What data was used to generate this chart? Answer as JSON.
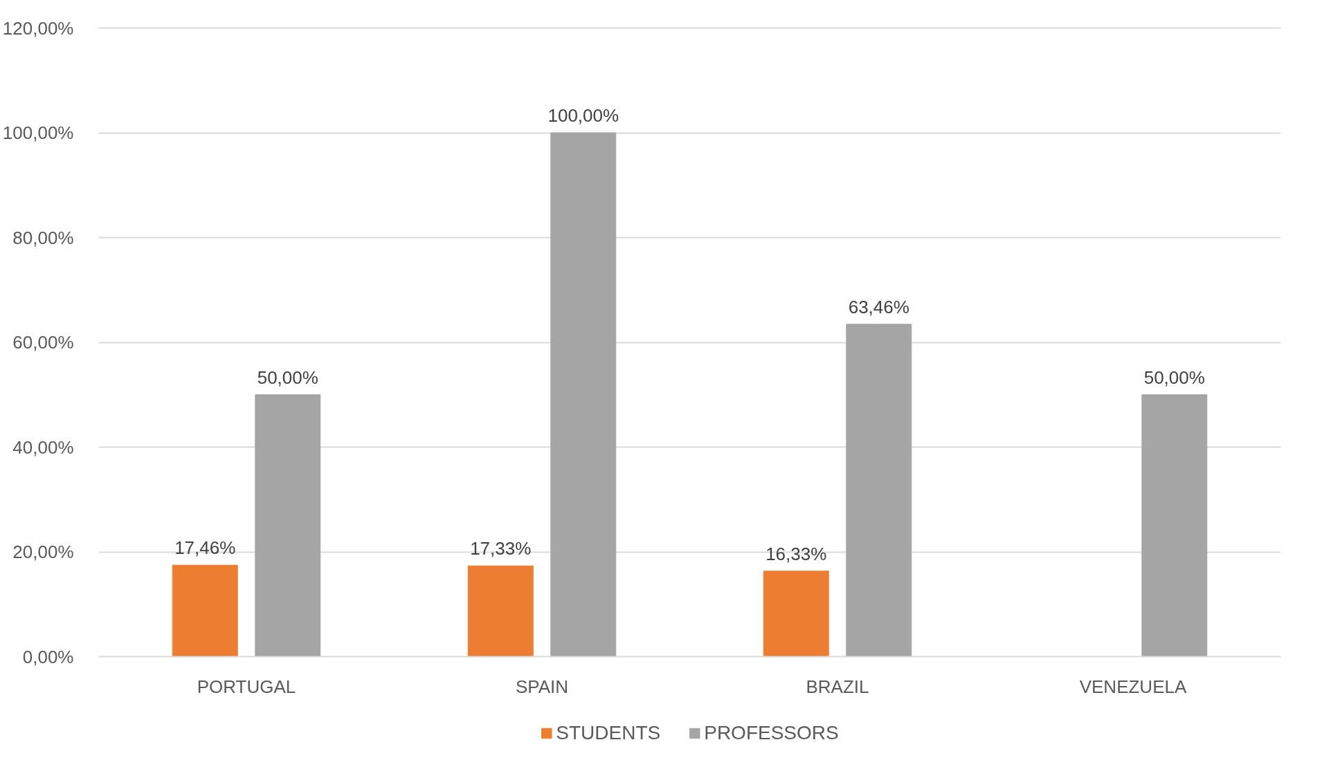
{
  "chart_data": {
    "type": "bar",
    "categories": [
      "PORTUGAL",
      "SPAIN",
      "BRAZIL",
      "VENEZUELA"
    ],
    "series": [
      {
        "name": "STUDENTS",
        "color": "#ed7d31",
        "values": [
          17.46,
          17.33,
          16.33,
          null
        ],
        "value_labels": [
          "17,46%",
          "17,33%",
          "16,33%",
          null
        ]
      },
      {
        "name": "PROFESSORS",
        "color": "#a5a5a5",
        "values": [
          50,
          100,
          63.46,
          50
        ],
        "value_labels": [
          "50,00%",
          "100,00%",
          "63,46%",
          "50,00%"
        ]
      }
    ],
    "ylim": [
      0,
      120
    ],
    "yticks": [
      {
        "value": 0,
        "label": "0,00%"
      },
      {
        "value": 20,
        "label": "20,00%"
      },
      {
        "value": 40,
        "label": "40,00%"
      },
      {
        "value": 60,
        "label": "60,00%"
      },
      {
        "value": 80,
        "label": "80,00%"
      },
      {
        "value": 100,
        "label": "100,00%"
      },
      {
        "value": 120,
        "label": "120,00%"
      }
    ],
    "grid": "y",
    "legend": "bottom"
  }
}
